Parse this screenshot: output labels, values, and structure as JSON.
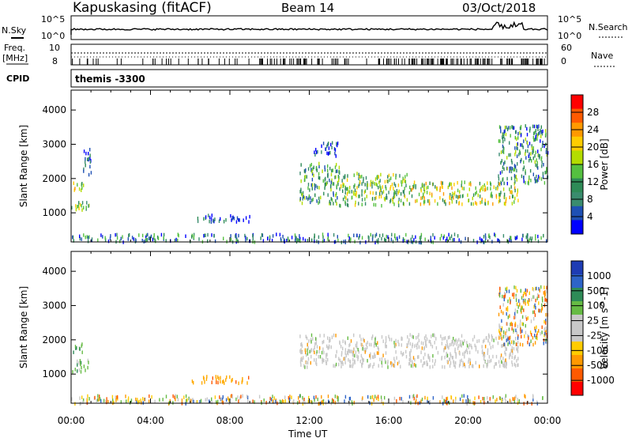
{
  "header": {
    "station": "Kapuskasing (fitACF)",
    "beam": "Beam 14",
    "date": "03/Oct/2018"
  },
  "strip_panels": {
    "nsky_label": "N.Sky",
    "nsky_ticks": [
      "10^5",
      "10^0"
    ],
    "nsearch_label": "N.Search",
    "nsearch_ticks": [
      "10^5",
      "10^0"
    ],
    "freq_label_line1": "Freq.",
    "freq_label_line2": "[MHz]",
    "freq_ticks": [
      "10",
      "8"
    ],
    "nave_label": "Nave",
    "nave_ticks": [
      "60",
      "0"
    ],
    "cpid_label": "CPID",
    "cpid_value": "themis -3300"
  },
  "chart_data": [
    {
      "type": "heatmap",
      "title": "",
      "xlabel": "",
      "ylabel": "Slant Range [km]",
      "yticks": [
        1000,
        2000,
        3000,
        4000
      ],
      "ylim": [
        150,
        4580
      ],
      "xlim_hours": [
        0,
        24
      ],
      "colorbar": {
        "label": "Power [dB]",
        "ticks": [
          "28",
          "24",
          "20",
          "16",
          "12",
          "8",
          "4"
        ],
        "colors": [
          "#ff0000",
          "#ff5a00",
          "#ff9900",
          "#ffcc00",
          "#b4dc00",
          "#55c040",
          "#2e8b57",
          "#3a8c6e",
          "#1e50b4",
          "#0000ff"
        ]
      },
      "echo_regions": [
        {
          "t": [
            0.0,
            0.6
          ],
          "r": [
            1650,
            1950
          ],
          "level": 0.5
        },
        {
          "t": [
            0.0,
            0.9
          ],
          "r": [
            1100,
            1450
          ],
          "level": 0.45
        },
        {
          "t": [
            0.6,
            1.0
          ],
          "r": [
            2050,
            2900
          ],
          "level": 0.15
        },
        {
          "t": [
            6.0,
            9.0
          ],
          "r": [
            780,
            980
          ],
          "level": 0.1
        },
        {
          "t": [
            11.5,
            13.5
          ],
          "r": [
            1300,
            2500
          ],
          "level": 0.35
        },
        {
          "t": [
            13.5,
            17.0
          ],
          "r": [
            1250,
            2200
          ],
          "level": 0.45
        },
        {
          "t": [
            17.0,
            22.5
          ],
          "r": [
            1300,
            1950
          ],
          "level": 0.55
        },
        {
          "t": [
            12.2,
            13.5
          ],
          "r": [
            2700,
            3100
          ],
          "level": 0.1
        },
        {
          "t": [
            21.5,
            24.0
          ],
          "r": [
            1900,
            3600
          ],
          "level": 0.3
        },
        {
          "t": [
            0.0,
            24.0
          ],
          "r": [
            180,
            420
          ],
          "level": 0.25
        }
      ]
    },
    {
      "type": "heatmap",
      "title": "",
      "xlabel": "Time UT",
      "ylabel": "Slant Range [km]",
      "yticks": [
        1000,
        2000,
        3000,
        4000
      ],
      "ylim": [
        150,
        4580
      ],
      "xticks": [
        "00:00",
        "04:00",
        "08:00",
        "12:00",
        "16:00",
        "20:00",
        "00:00"
      ],
      "xlim_hours": [
        0,
        24
      ],
      "colorbar": {
        "label": "Velocity [m s^-1]",
        "ticks": [
          "1000",
          "500",
          "100",
          "25",
          "-25",
          "-100",
          "-500",
          "-1000"
        ],
        "colors": [
          "#1e3cb4",
          "#2d64c8",
          "#2e8b57",
          "#66bb44",
          "#c8c8c8",
          "#c8c8c8",
          "#ffcc00",
          "#ff9900",
          "#ff5a00",
          "#ff0000"
        ]
      },
      "echo_regions": [
        {
          "t": [
            0.0,
            0.6
          ],
          "r": [
            1650,
            1950
          ],
          "vel": "positive"
        },
        {
          "t": [
            0.0,
            0.9
          ],
          "r": [
            1100,
            1450
          ],
          "vel": "positive"
        },
        {
          "t": [
            6.0,
            9.0
          ],
          "r": [
            780,
            980
          ],
          "vel": "negative"
        },
        {
          "t": [
            11.5,
            22.5
          ],
          "r": [
            1250,
            2200
          ],
          "vel": "near-zero"
        },
        {
          "t": [
            21.5,
            24.0
          ],
          "r": [
            1900,
            3600
          ],
          "vel": "mixed"
        },
        {
          "t": [
            0.0,
            24.0
          ],
          "r": [
            180,
            420
          ],
          "vel": "mixed"
        }
      ]
    }
  ]
}
